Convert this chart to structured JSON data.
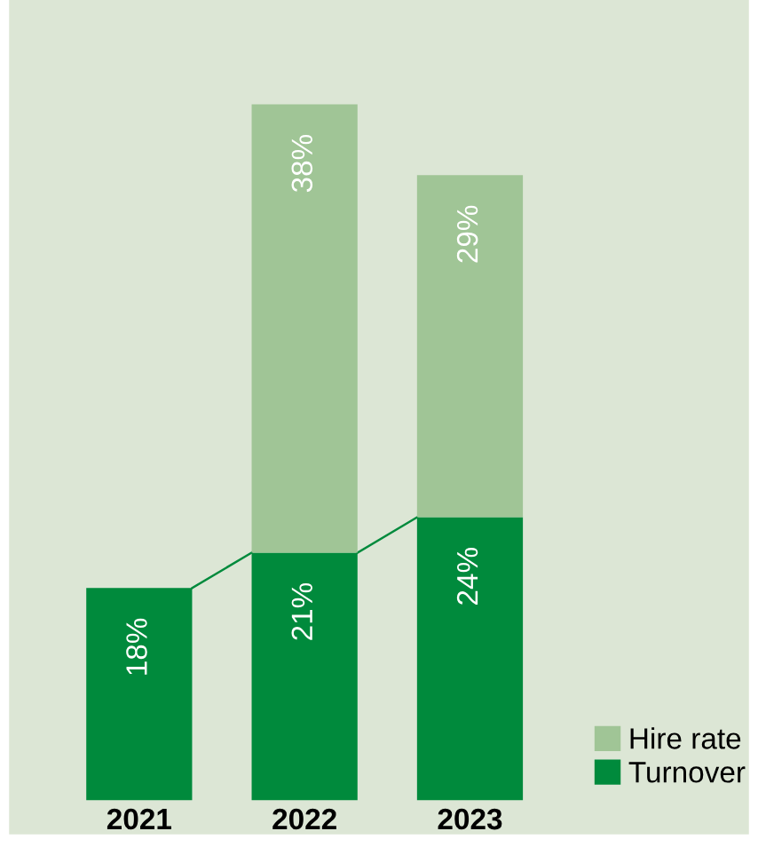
{
  "chart_data": {
    "type": "bar",
    "stacked": true,
    "categories": [
      "2021",
      "2022",
      "2023"
    ],
    "series": [
      {
        "name": "Turnover",
        "color": "#008a3c",
        "values": [
          18,
          21,
          24
        ],
        "value_labels": [
          "18%",
          "21%",
          "24%"
        ]
      },
      {
        "name": "Hire rate",
        "color": "#a0c596",
        "values": [
          null,
          38,
          29
        ],
        "value_labels": [
          null,
          "38%",
          "29%"
        ]
      }
    ],
    "legend": "bottom right",
    "grid": false
  }
}
